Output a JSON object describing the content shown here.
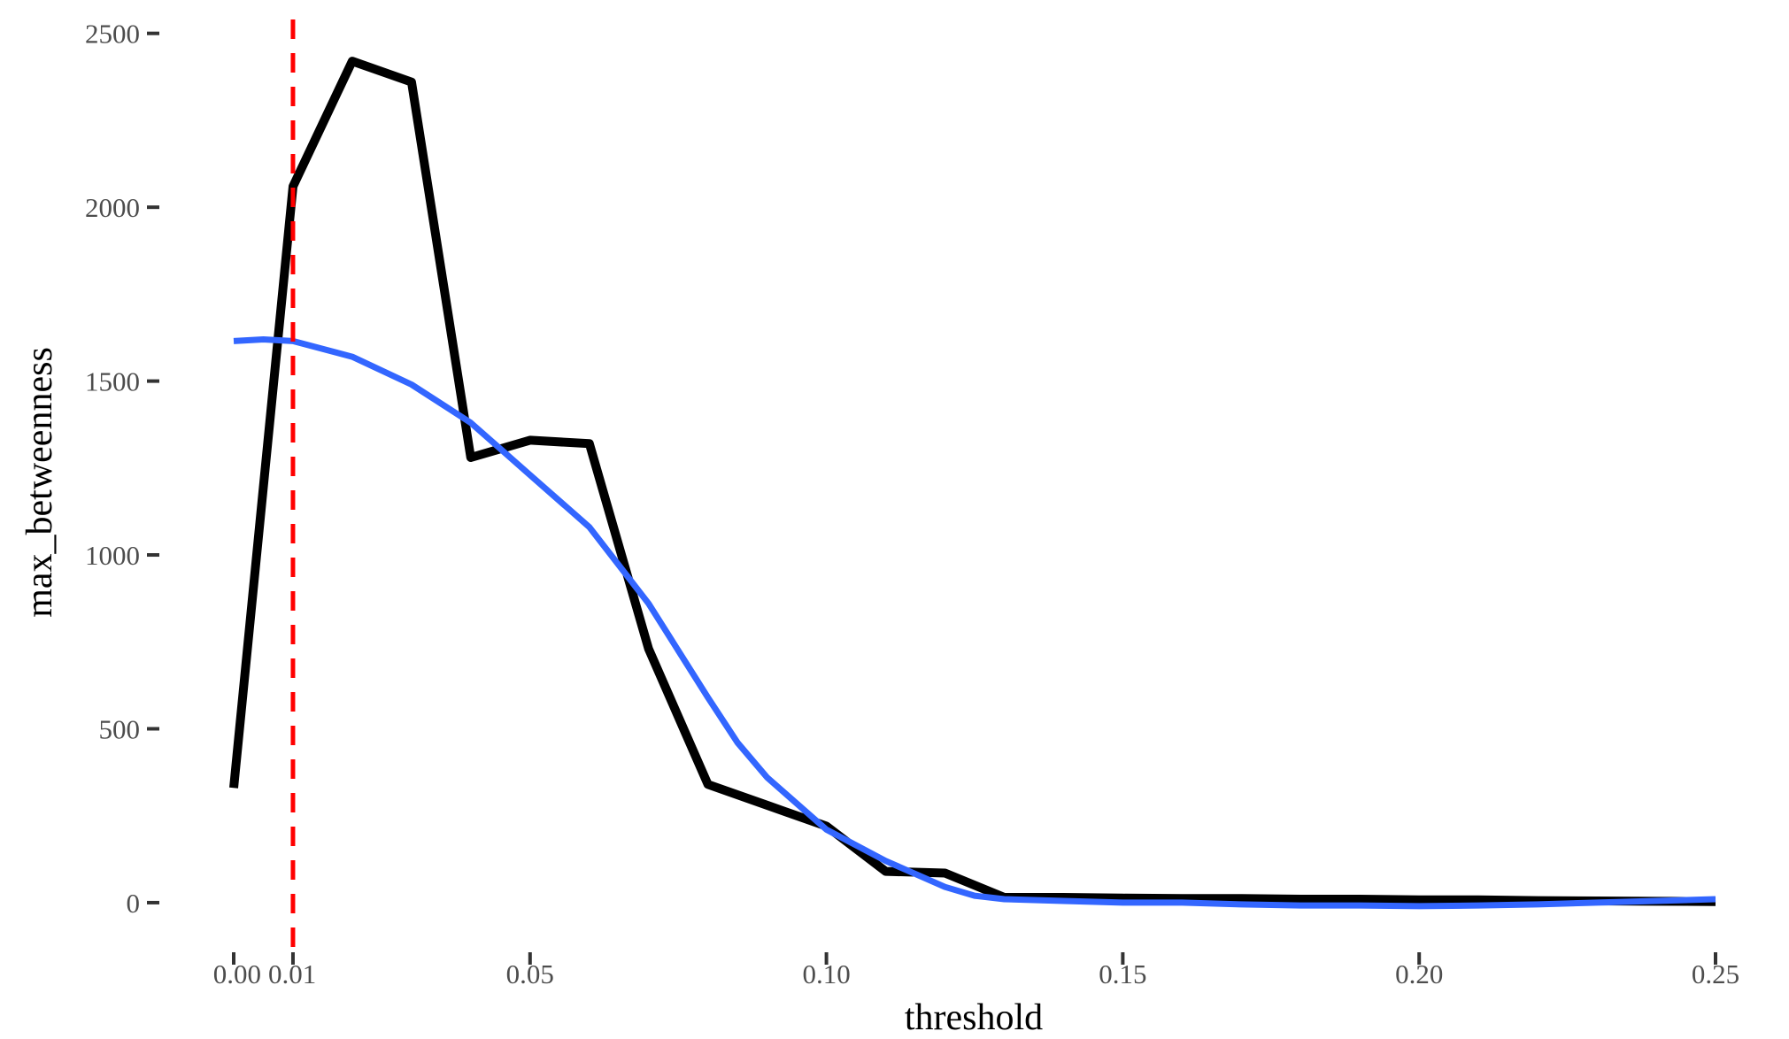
{
  "chart_data": {
    "type": "line",
    "title": "",
    "xlabel": "threshold",
    "ylabel": "max_betweenness",
    "xlim": [
      0,
      0.25
    ],
    "ylim": [
      -130,
      2540
    ],
    "x_ticks": [
      0.0,
      0.01,
      0.05,
      0.1,
      0.15,
      0.2,
      0.25
    ],
    "x_tick_labels": [
      "0.00",
      "0.01",
      "0.05",
      "0.10",
      "0.15",
      "0.20",
      "0.25"
    ],
    "y_ticks": [
      0,
      500,
      1000,
      1500,
      2000,
      2500
    ],
    "y_tick_labels": [
      "0",
      "500",
      "1000",
      "1500",
      "2000",
      "2500"
    ],
    "grid": false,
    "legend": "none",
    "series": [
      {
        "kind": "observed",
        "color": "#000000",
        "x": [
          0.0,
          0.01,
          0.02,
          0.03,
          0.04,
          0.05,
          0.06,
          0.07,
          0.08,
          0.09,
          0.1,
          0.11,
          0.12,
          0.13,
          0.14,
          0.15,
          0.16,
          0.17,
          0.18,
          0.19,
          0.2,
          0.21,
          0.22,
          0.23,
          0.24,
          0.25
        ],
        "y": [
          330,
          2060,
          2420,
          2360,
          1280,
          1330,
          1320,
          730,
          340,
          280,
          220,
          90,
          85,
          15,
          15,
          13,
          12,
          12,
          10,
          10,
          8,
          8,
          6,
          5,
          4,
          3
        ]
      },
      {
        "kind": "smooth",
        "color": "#3366ff",
        "x": [
          0.0,
          0.005,
          0.01,
          0.02,
          0.03,
          0.04,
          0.05,
          0.06,
          0.07,
          0.08,
          0.085,
          0.09,
          0.1,
          0.11,
          0.12,
          0.125,
          0.13,
          0.14,
          0.15,
          0.16,
          0.17,
          0.18,
          0.19,
          0.2,
          0.21,
          0.22,
          0.23,
          0.24,
          0.25
        ],
        "y": [
          1615,
          1620,
          1615,
          1570,
          1490,
          1380,
          1230,
          1080,
          860,
          590,
          460,
          360,
          210,
          120,
          45,
          20,
          10,
          5,
          0,
          0,
          -5,
          -8,
          -8,
          -10,
          -8,
          -5,
          0,
          5,
          10
        ]
      }
    ],
    "reference_line": {
      "orientation": "vertical",
      "x": 0.01,
      "style": "dashed",
      "color": "#ff0000"
    }
  }
}
